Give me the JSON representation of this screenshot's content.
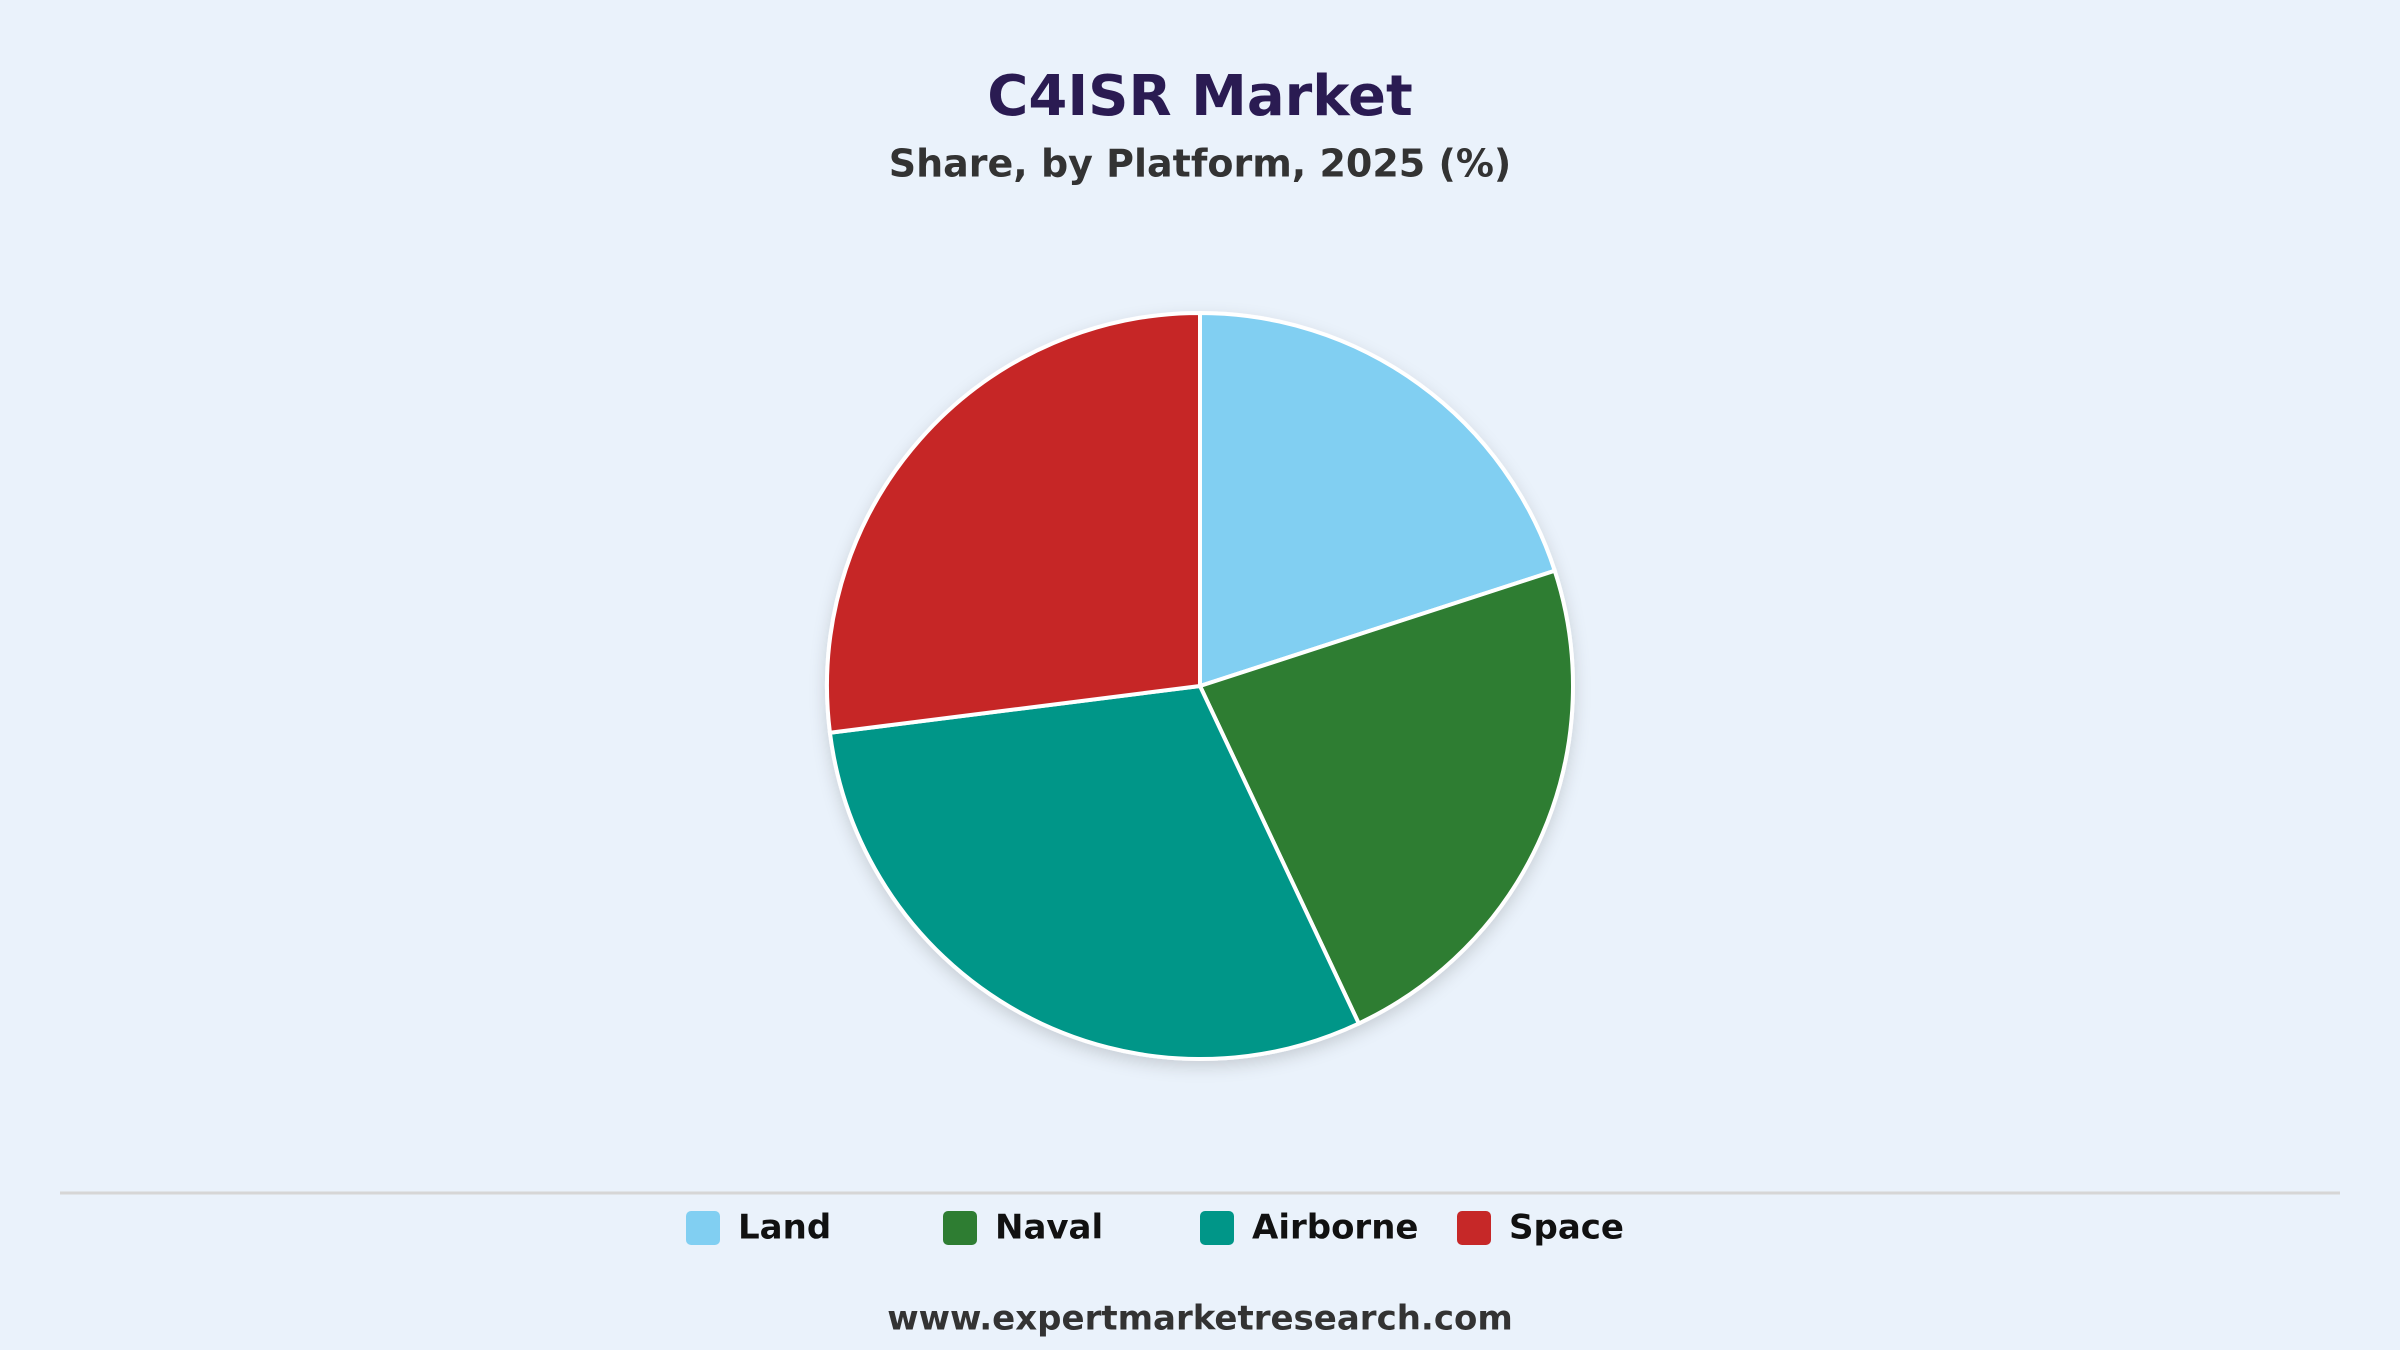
{
  "chart_data": {
    "type": "pie",
    "title": "C4ISR Market",
    "subtitle": "Share, by Platform, 2025 (%)",
    "categories": [
      "Land",
      "Naval",
      "Airborne",
      "Space"
    ],
    "values": [
      20,
      23,
      30,
      27
    ],
    "colors": [
      "#81cff2",
      "#2e7d32",
      "#009688",
      "#c62828"
    ],
    "source": "www.expertmarketresearch.com"
  }
}
